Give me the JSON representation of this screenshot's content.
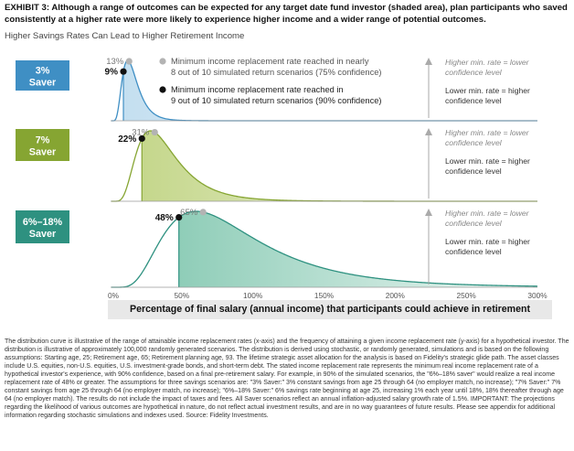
{
  "title": "EXHIBIT 3: Although a range of outcomes can be expected for any target date fund investor (shaded area), plan participants who saved consistently at a higher rate were more likely to experience higher income and a wider range of potential outcomes.",
  "subtitle": "Higher Savings Rates Can Lead to Higher Retirement Income",
  "legend": {
    "gray_label_1": "Minimum income replacement rate reached in nearly",
    "gray_label_2": "8 out of 10 simulated return scenarios (75% confidence)",
    "black_label_1": "Minimum income replacement rate reached in",
    "black_label_2": "9 out of 10 simulated return scenarios (90% confidence)"
  },
  "arrow_note": {
    "upper_1": "Higher min. rate = lower",
    "upper_2": "confidence level",
    "lower_1": "Lower min. rate = higher",
    "lower_2": "confidence level"
  },
  "colors": {
    "saver_3": "#3f8fc4",
    "saver_7": "#86a532",
    "saver_6_18": "#2e9180",
    "fill_3": "#c4dff0",
    "fill_7": "#c5d78c",
    "fill_6_18": "#8fcdb8"
  },
  "chart_data": {
    "type": "area",
    "xlabel": "Percentage of final salary (annual income) that participants could achieve in retirement",
    "x_ticks": [
      "0%",
      "50%",
      "100%",
      "150%",
      "200%",
      "250%",
      "300%"
    ],
    "xlim": [
      0,
      300
    ],
    "series": [
      {
        "name": "3% Saver",
        "label_1": "3%",
        "label_2": "Saver",
        "conf75_value": 13,
        "conf75_label": "13%",
        "conf90_value": 9,
        "conf90_label": "9%",
        "mode": 12,
        "spread": 9,
        "skew": 0.45
      },
      {
        "name": "7% Saver",
        "label_1": "7%",
        "label_2": "Saver",
        "conf75_value": 31,
        "conf75_label": "31%",
        "conf90_value": 22,
        "conf90_label": "22%",
        "mode": 28,
        "spread": 20,
        "skew": 0.5
      },
      {
        "name": "6%–18% Saver",
        "label_1": "6%–18%",
        "label_2": "Saver",
        "conf75_value": 65,
        "conf75_label": "65%",
        "conf90_value": 48,
        "conf90_label": "48%",
        "mode": 60,
        "spread": 36,
        "skew": 0.55
      }
    ]
  },
  "footnote": "The distribution curve is illustrative of the range of attainable income replacement rates (x-axis) and the frequency of attaining a given income replacement rate (y-axis) for a hypothetical investor. The distribution is illustrative of approximately 100,000 randomly generated scenarios. The distribution is derived using stochastic, or randomly generated, simulations and is based on the following assumptions: Starting age, 25; Retirement age, 65; Retirement planning age, 93. The lifetime strategic asset allocation for the analysis is based on Fidelity's strategic glide path. The asset classes include U.S. equities, non-U.S. equities, U.S. investment-grade bonds, and short-term debt. The stated income replacement rate represents the minimum real income replacement rate of a hypothetical investor's experience, with 90% confidence, based on a final pre-retirement salary. For example, in 90% of the simulated scenarios, the \"6%–18% saver\" would realize a real income replacement rate of 48% or greater. The assumptions for three savings scenarios are: \"3% Saver:\" 3% constant savings from age 25 through 64 (no employer match, no increase); \"7% Saver:\" 7% constant savings from age 25 through 64 (no employer match, no increase); \"6%–18% Saver:\" 6% savings rate beginning at age 25, increasing 1% each year until 18%, 18% thereafter through age 64 (no employer match). The results do not include the impact of taxes and fees. All Saver scenarios reflect an annual inflation-adjusted salary growth rate of 1.5%. IMPORTANT: The projections regarding the likelihood of various outcomes are hypothetical in nature, do not reflect actual investment results, and are in no way guarantees of future results. Please see appendix for additional information regarding stochastic simulations and indexes used. Source: Fidelity Investments."
}
